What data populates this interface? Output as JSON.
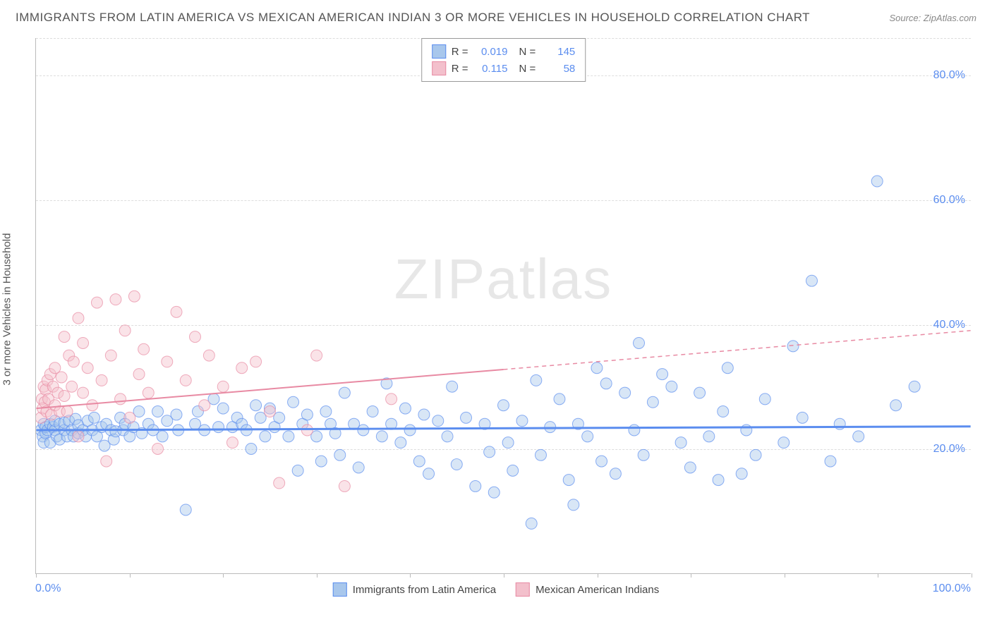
{
  "title": "IMMIGRANTS FROM LATIN AMERICA VS MEXICAN AMERICAN INDIAN 3 OR MORE VEHICLES IN HOUSEHOLD CORRELATION CHART",
  "source": "Source: ZipAtlas.com",
  "watermark": "ZIPatlas",
  "y_axis_title": "3 or more Vehicles in Household",
  "x_min_label": "0.0%",
  "x_max_label": "100.0%",
  "chart": {
    "type": "scatter",
    "xlim": [
      0,
      100
    ],
    "ylim": [
      0,
      86
    ],
    "y_ticks": [
      20,
      40,
      60,
      80
    ],
    "y_tick_labels": [
      "20.0%",
      "40.0%",
      "60.0%",
      "80.0%"
    ],
    "x_ticks": [
      0,
      10,
      20,
      30,
      40,
      50,
      60,
      70,
      80,
      90,
      100
    ],
    "background_color": "#ffffff",
    "grid_color": "#dddddd",
    "grid_dash": "4,4",
    "point_radius": 8,
    "point_opacity": 0.45,
    "point_stroke_width": 1,
    "series": [
      {
        "name": "Immigrants from Latin America",
        "fill": "#a8c7ec",
        "stroke": "#5b8def",
        "R": "0.019",
        "N": "145",
        "trend": {
          "y_at_x0": 23.0,
          "y_at_x100": 23.6,
          "x_solid_max": 100,
          "stroke_width": 3
        },
        "points": [
          [
            0.5,
            23
          ],
          [
            0.7,
            22
          ],
          [
            0.8,
            24
          ],
          [
            0.8,
            21
          ],
          [
            1,
            22.5
          ],
          [
            1,
            23.5
          ],
          [
            1.2,
            23
          ],
          [
            1.5,
            21
          ],
          [
            1.5,
            24
          ],
          [
            1.8,
            23.5
          ],
          [
            2,
            23
          ],
          [
            2,
            24.5
          ],
          [
            2.2,
            22
          ],
          [
            2.5,
            21.5
          ],
          [
            2.5,
            24
          ],
          [
            3,
            23
          ],
          [
            3,
            24.2
          ],
          [
            3.3,
            22
          ],
          [
            3.5,
            24.5
          ],
          [
            3.8,
            23
          ],
          [
            4,
            22
          ],
          [
            4.2,
            24.8
          ],
          [
            4.5,
            22.5
          ],
          [
            4.5,
            23.8
          ],
          [
            5,
            23
          ],
          [
            5.3,
            22
          ],
          [
            5.5,
            24.5
          ],
          [
            6,
            23
          ],
          [
            6.2,
            25
          ],
          [
            6.5,
            22
          ],
          [
            7,
            23.5
          ],
          [
            7.3,
            20.5
          ],
          [
            7.5,
            24
          ],
          [
            8,
            23
          ],
          [
            8.3,
            21.5
          ],
          [
            8.5,
            22.8
          ],
          [
            9,
            25
          ],
          [
            9.3,
            23
          ],
          [
            9.5,
            24
          ],
          [
            10,
            22
          ],
          [
            10.4,
            23.5
          ],
          [
            11,
            26
          ],
          [
            11.3,
            22.5
          ],
          [
            12,
            24
          ],
          [
            12.5,
            23
          ],
          [
            13,
            26
          ],
          [
            13.5,
            22
          ],
          [
            14,
            24.5
          ],
          [
            15,
            25.5
          ],
          [
            15.2,
            23
          ],
          [
            16,
            10.2
          ],
          [
            17,
            24
          ],
          [
            17.3,
            26
          ],
          [
            18,
            23
          ],
          [
            19,
            28
          ],
          [
            19.5,
            23.5
          ],
          [
            20,
            26.5
          ],
          [
            21,
            23.5
          ],
          [
            21.5,
            25
          ],
          [
            22,
            24
          ],
          [
            22.5,
            23
          ],
          [
            23,
            20
          ],
          [
            23.5,
            27
          ],
          [
            24,
            25
          ],
          [
            24.5,
            22
          ],
          [
            25,
            26.5
          ],
          [
            25.5,
            23.5
          ],
          [
            26,
            25
          ],
          [
            27,
            22
          ],
          [
            27.5,
            27.5
          ],
          [
            28,
            16.5
          ],
          [
            28.5,
            24
          ],
          [
            29,
            25.5
          ],
          [
            30,
            22
          ],
          [
            30.5,
            18
          ],
          [
            31,
            26
          ],
          [
            31.5,
            24
          ],
          [
            32,
            22.5
          ],
          [
            32.5,
            19
          ],
          [
            33,
            29
          ],
          [
            34,
            24
          ],
          [
            34.5,
            17
          ],
          [
            35,
            23
          ],
          [
            36,
            26
          ],
          [
            37,
            22
          ],
          [
            37.5,
            30.5
          ],
          [
            38,
            24
          ],
          [
            39,
            21
          ],
          [
            39.5,
            26.5
          ],
          [
            40,
            23
          ],
          [
            41,
            18
          ],
          [
            41.5,
            25.5
          ],
          [
            42,
            16
          ],
          [
            43,
            24.5
          ],
          [
            44,
            22
          ],
          [
            44.5,
            30
          ],
          [
            45,
            17.5
          ],
          [
            46,
            25
          ],
          [
            47,
            14
          ],
          [
            48,
            24
          ],
          [
            48.5,
            19.5
          ],
          [
            49,
            13
          ],
          [
            50,
            27
          ],
          [
            50.5,
            21
          ],
          [
            51,
            16.5
          ],
          [
            52,
            24.5
          ],
          [
            53,
            8
          ],
          [
            53.5,
            31
          ],
          [
            54,
            19
          ],
          [
            55,
            23.5
          ],
          [
            56,
            28
          ],
          [
            57,
            15
          ],
          [
            57.5,
            11
          ],
          [
            58,
            24
          ],
          [
            59,
            22
          ],
          [
            60,
            33
          ],
          [
            60.5,
            18
          ],
          [
            61,
            30.5
          ],
          [
            62,
            16
          ],
          [
            63,
            29
          ],
          [
            64,
            23
          ],
          [
            64.5,
            37
          ],
          [
            65,
            19
          ],
          [
            66,
            27.5
          ],
          [
            67,
            32
          ],
          [
            68,
            30
          ],
          [
            69,
            21
          ],
          [
            70,
            17
          ],
          [
            71,
            29
          ],
          [
            72,
            22
          ],
          [
            73,
            15
          ],
          [
            73.5,
            26
          ],
          [
            74,
            33
          ],
          [
            75.5,
            16
          ],
          [
            76,
            23
          ],
          [
            77,
            19
          ],
          [
            78,
            28
          ],
          [
            80,
            21
          ],
          [
            81,
            36.5
          ],
          [
            82,
            25
          ],
          [
            83,
            47
          ],
          [
            85,
            18
          ],
          [
            86,
            24
          ],
          [
            88,
            22
          ],
          [
            90,
            63
          ],
          [
            92,
            27
          ],
          [
            94,
            30
          ]
        ]
      },
      {
        "name": "Mexican American Indians",
        "fill": "#f3c0cc",
        "stroke": "#e88aa3",
        "R": "0.115",
        "N": "58",
        "trend": {
          "y_at_x0": 26.5,
          "y_at_x100": 39.0,
          "x_solid_max": 50,
          "stroke_width": 2
        },
        "points": [
          [
            0.5,
            25
          ],
          [
            0.6,
            28
          ],
          [
            0.7,
            26.5
          ],
          [
            0.8,
            30
          ],
          [
            0.9,
            27.5
          ],
          [
            1,
            29.5
          ],
          [
            1.1,
            26
          ],
          [
            1.2,
            31
          ],
          [
            1.3,
            28
          ],
          [
            1.5,
            32
          ],
          [
            1.6,
            25.5
          ],
          [
            1.8,
            30
          ],
          [
            2,
            27
          ],
          [
            2,
            33
          ],
          [
            2.3,
            29
          ],
          [
            2.5,
            26
          ],
          [
            2.7,
            31.5
          ],
          [
            3,
            28.5
          ],
          [
            3,
            38
          ],
          [
            3.3,
            26
          ],
          [
            3.5,
            35
          ],
          [
            3.8,
            30
          ],
          [
            4,
            34
          ],
          [
            4.5,
            22
          ],
          [
            4.5,
            41
          ],
          [
            5,
            29
          ],
          [
            5,
            37
          ],
          [
            5.5,
            33
          ],
          [
            6,
            27
          ],
          [
            6.5,
            43.5
          ],
          [
            7,
            31
          ],
          [
            7.5,
            18
          ],
          [
            8,
            35
          ],
          [
            8.5,
            44
          ],
          [
            9,
            28
          ],
          [
            9.5,
            39
          ],
          [
            10,
            25
          ],
          [
            10.5,
            44.5
          ],
          [
            11,
            32
          ],
          [
            11.5,
            36
          ],
          [
            12,
            29
          ],
          [
            13,
            20
          ],
          [
            14,
            34
          ],
          [
            15,
            42
          ],
          [
            16,
            31
          ],
          [
            17,
            38
          ],
          [
            18,
            27
          ],
          [
            18.5,
            35
          ],
          [
            20,
            30
          ],
          [
            21,
            21
          ],
          [
            22,
            33
          ],
          [
            23.5,
            34
          ],
          [
            25,
            26
          ],
          [
            26,
            14.5
          ],
          [
            29,
            23
          ],
          [
            30,
            35
          ],
          [
            33,
            14
          ],
          [
            38,
            28
          ]
        ]
      }
    ]
  },
  "legend_bottom": [
    {
      "label": "Immigrants from Latin America",
      "fill": "#a8c7ec",
      "stroke": "#5b8def"
    },
    {
      "label": "Mexican American Indians",
      "fill": "#f3c0cc",
      "stroke": "#e88aa3"
    }
  ]
}
